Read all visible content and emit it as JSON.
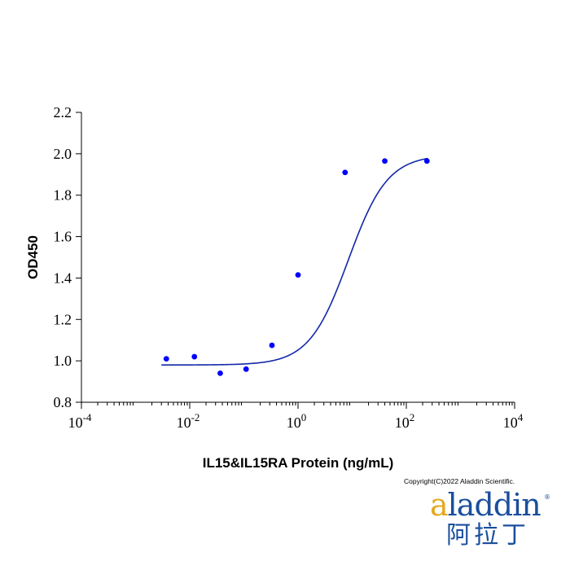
{
  "chart_data": {
    "type": "scatter",
    "title": "",
    "xlabel": "IL15&IL15RA Protein (ng/mL)",
    "ylabel": "OD450",
    "x_scale": "log",
    "xlim": [
      0.0001,
      10000
    ],
    "ylim": [
      0.8,
      2.2
    ],
    "x_ticks": [
      {
        "value": 0.0001,
        "base": "10",
        "exp": "-4"
      },
      {
        "value": 0.01,
        "base": "10",
        "exp": "-2"
      },
      {
        "value": 1,
        "base": "10",
        "exp": "0"
      },
      {
        "value": 100,
        "base": "10",
        "exp": "2"
      },
      {
        "value": 10000,
        "base": "10",
        "exp": "4"
      }
    ],
    "y_ticks": [
      "0.8",
      "1.0",
      "1.2",
      "1.4",
      "1.6",
      "1.8",
      "2.0",
      "2.2"
    ],
    "grid": false,
    "color": "#0000ff",
    "curve_color": "#1428a8",
    "series": [
      {
        "x": [
          0.0037,
          0.0122,
          0.0366,
          0.11,
          0.33,
          1.0,
          7.4,
          40.0,
          240.0
        ],
        "values": [
          1.01,
          1.02,
          0.94,
          0.96,
          1.075,
          1.415,
          1.91,
          1.965,
          1.965
        ]
      }
    ],
    "fit_curve": {
      "model": "4PL",
      "bottom": 0.98,
      "top": 1.995,
      "ec50": 8.5,
      "hill": 1.2,
      "x_range": [
        0.003,
        250
      ]
    }
  },
  "footer": {
    "copyright": "Copyright(C)2022 Aladdin Scientific."
  },
  "logo": {
    "latin_first": "a",
    "latin_rest": "laddin",
    "registered": "®",
    "chinese": "阿拉丁"
  }
}
